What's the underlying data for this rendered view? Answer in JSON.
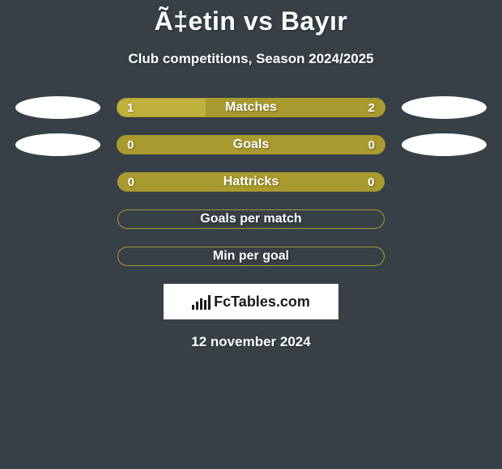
{
  "title": "Ã‡etin vs Bayır",
  "subtitle": "Club competitions, Season 2024/2025",
  "date": "12 november 2024",
  "logo_text": "FcTables.com",
  "colors": {
    "background": "#364046",
    "bar_fill": "#a89a2e",
    "bar_border": "#a89a2e",
    "split_left": "#c0b13e",
    "ellipse": "#ffffff",
    "text": "#ffffff",
    "logo_bg": "#ffffff",
    "logo_text": "#1a1a1a"
  },
  "rows": [
    {
      "label": "Matches",
      "left_value": "1",
      "right_value": "2",
      "has_ellipses": true,
      "split_percent": 33,
      "bar_style": "split"
    },
    {
      "label": "Goals",
      "left_value": "0",
      "right_value": "0",
      "has_ellipses": true,
      "bar_style": "filled"
    },
    {
      "label": "Hattricks",
      "left_value": "0",
      "right_value": "0",
      "has_ellipses": false,
      "bar_style": "filled"
    },
    {
      "label": "Goals per match",
      "left_value": "",
      "right_value": "",
      "has_ellipses": false,
      "bar_style": "empty"
    },
    {
      "label": "Min per goal",
      "left_value": "",
      "right_value": "",
      "has_ellipses": false,
      "bar_style": "empty"
    }
  ],
  "logo_bars_heights": [
    6,
    10,
    14,
    12,
    18
  ]
}
